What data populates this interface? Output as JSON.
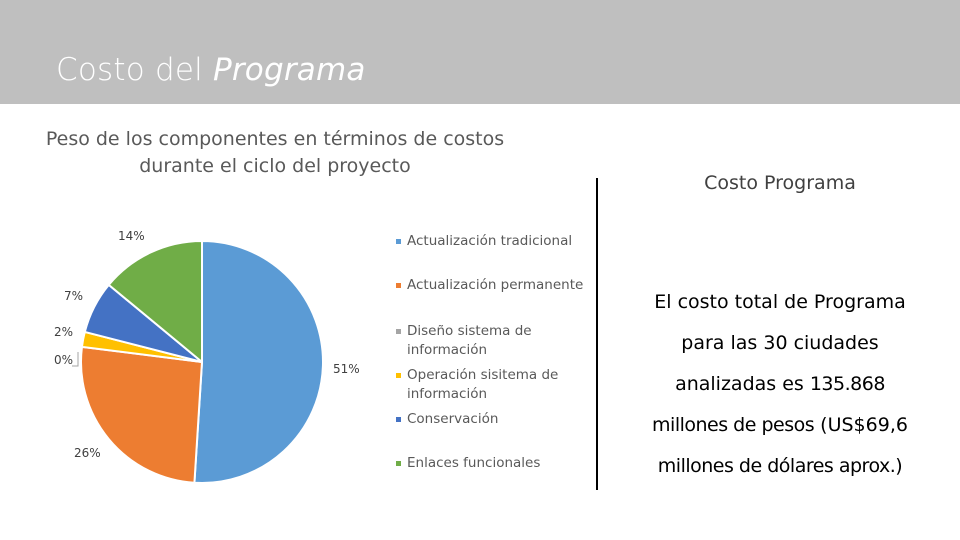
{
  "header": {
    "title_plain": "Costo del ",
    "title_italic": "Programa"
  },
  "chart_data": {
    "type": "pie",
    "title": "Peso de los componentes en términos de costos durante el ciclo del proyecto",
    "categories": [
      "Actualización tradicional",
      "Actualización permanente",
      "Diseño sistema de información",
      "Operación sisitema de información",
      "Conservación",
      "Enlaces funcionales"
    ],
    "values": [
      51,
      26,
      0,
      2,
      7,
      14
    ],
    "labels": [
      "51%",
      "26%",
      "0%",
      "2%",
      "7%",
      "14%"
    ],
    "colors": [
      "#5b9bd5",
      "#ed7d31",
      "#a5a5a5",
      "#ffc000",
      "#4472c4",
      "#70ad47"
    ],
    "legend": "right"
  },
  "side": {
    "heading": "Costo Programa",
    "line1": "El costo total de Programa",
    "line2": "para las 30 ciudades",
    "line3_prefix": "analizadas es ",
    "line3_value": "135.868",
    "line4_value": "millones de pesos",
    "line4_suffix": " (US$69,6",
    "line5_value": "millones de dólares aprox.)"
  }
}
